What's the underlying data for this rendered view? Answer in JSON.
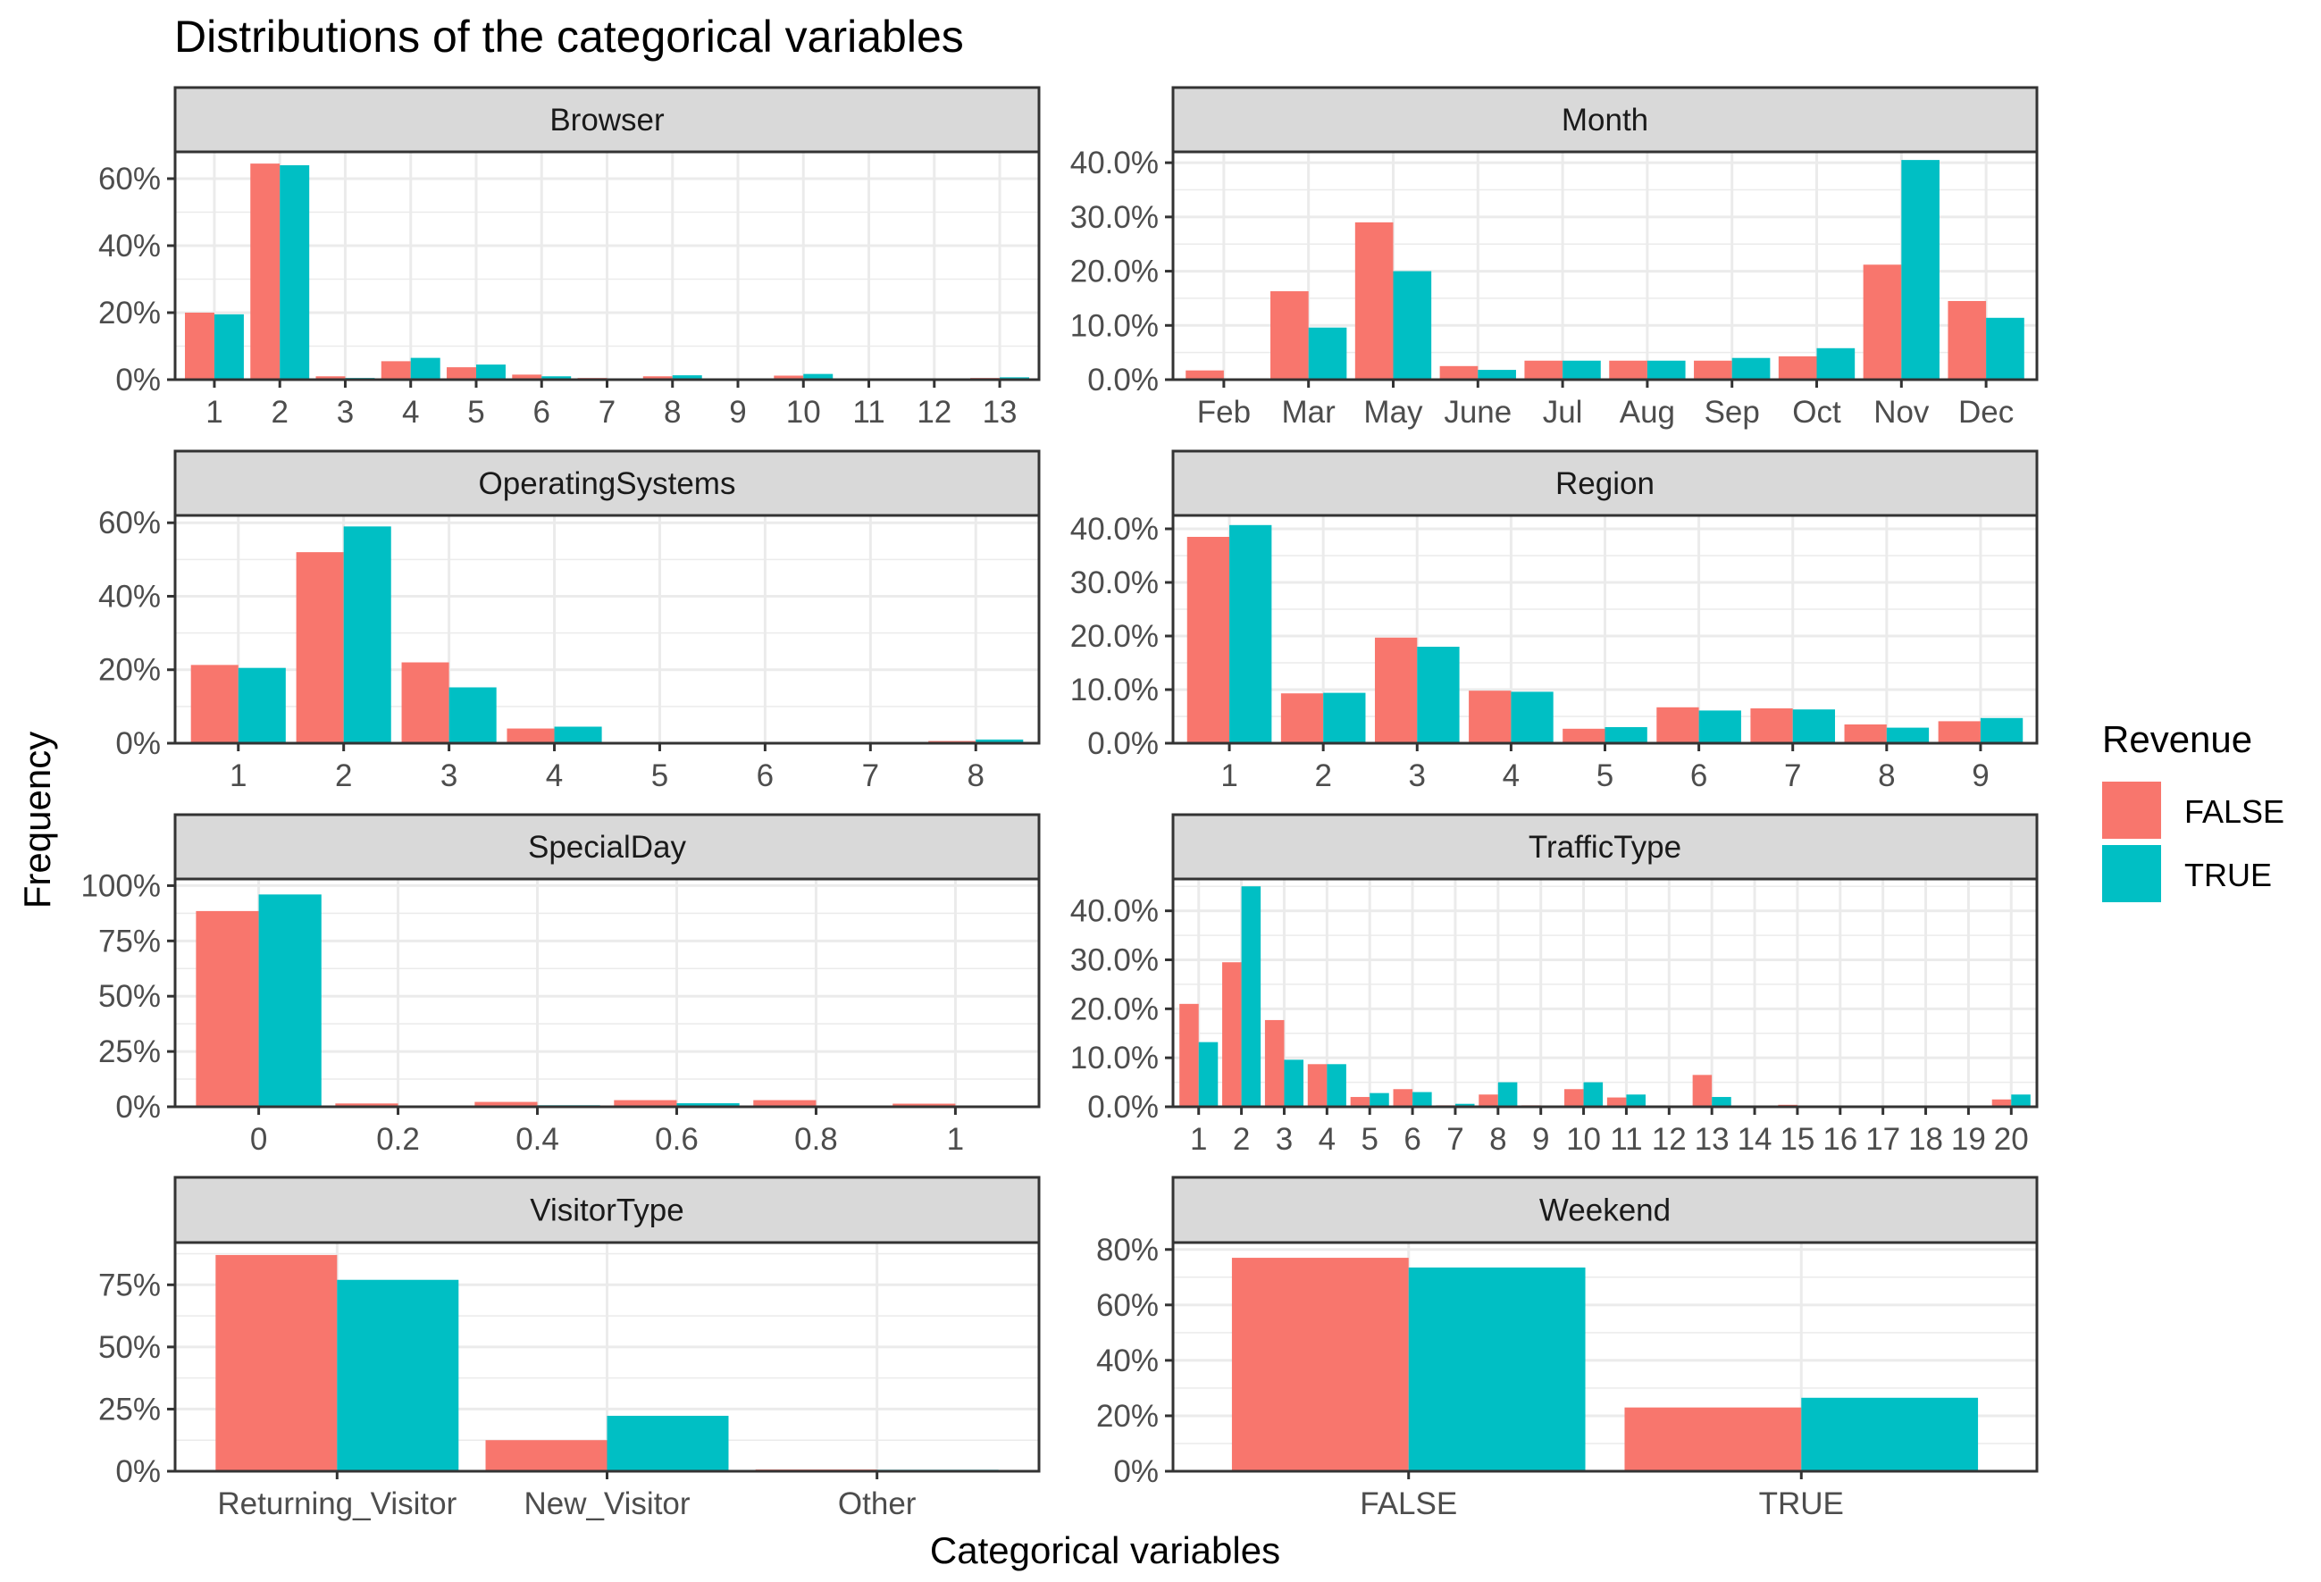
{
  "chart_data": {
    "type": "bar",
    "title": "Distributions of the categorical variables",
    "xlabel": "Categorical variables",
    "ylabel": "Frequency",
    "legend": {
      "title": "Revenue",
      "placement": "right",
      "entries": [
        {
          "name": "FALSE",
          "color": "#F8766D"
        },
        {
          "name": "TRUE",
          "color": "#00BFC4"
        }
      ]
    },
    "grid": true,
    "panels": [
      {
        "strip": "Browser",
        "categories": [
          "1",
          "2",
          "3",
          "4",
          "5",
          "6",
          "7",
          "8",
          "9",
          "10",
          "11",
          "12",
          "13"
        ],
        "yticks": [
          "0%",
          "20%",
          "40%",
          "60%"
        ],
        "ylim": [
          0,
          0.68
        ],
        "series": [
          {
            "name": "FALSE",
            "values": [
              0.2,
              0.645,
              0.01,
              0.055,
              0.037,
              0.015,
              0.005,
              0.01,
              0.001,
              0.012,
              0.001,
              0.001,
              0.005
            ]
          },
          {
            "name": "TRUE",
            "values": [
              0.195,
              0.64,
              0.005,
              0.065,
              0.045,
              0.01,
              0.003,
              0.013,
              0.0,
              0.017,
              0.0,
              0.001,
              0.007
            ]
          }
        ]
      },
      {
        "strip": "Month",
        "categories": [
          "Feb",
          "Mar",
          "May",
          "June",
          "Jul",
          "Aug",
          "Sep",
          "Oct",
          "Nov",
          "Dec"
        ],
        "yticks": [
          "0.0%",
          "10.0%",
          "20.0%",
          "30.0%",
          "40.0%"
        ],
        "ylim": [
          0,
          0.42
        ],
        "series": [
          {
            "name": "FALSE",
            "values": [
              0.017,
              0.163,
              0.29,
              0.025,
              0.035,
              0.035,
              0.035,
              0.043,
              0.212,
              0.145
            ]
          },
          {
            "name": "TRUE",
            "values": [
              0.002,
              0.096,
              0.2,
              0.018,
              0.035,
              0.035,
              0.04,
              0.058,
              0.405,
              0.114
            ]
          }
        ]
      },
      {
        "strip": "OperatingSystems",
        "categories": [
          "1",
          "2",
          "3",
          "4",
          "5",
          "6",
          "7",
          "8"
        ],
        "yticks": [
          "0%",
          "20%",
          "40%",
          "60%"
        ],
        "ylim": [
          0,
          0.62
        ],
        "series": [
          {
            "name": "FALSE",
            "values": [
              0.213,
              0.52,
              0.22,
              0.04,
              0.001,
              0.002,
              0.0,
              0.006
            ]
          },
          {
            "name": "TRUE",
            "values": [
              0.205,
              0.59,
              0.152,
              0.045,
              0.001,
              0.001,
              0.001,
              0.01
            ]
          }
        ]
      },
      {
        "strip": "Region",
        "categories": [
          "1",
          "2",
          "3",
          "4",
          "5",
          "6",
          "7",
          "8",
          "9"
        ],
        "yticks": [
          "0.0%",
          "10.0%",
          "20.0%",
          "30.0%",
          "40.0%"
        ],
        "ylim": [
          0,
          0.425
        ],
        "series": [
          {
            "name": "FALSE",
            "values": [
              0.385,
              0.093,
              0.197,
              0.098,
              0.027,
              0.067,
              0.065,
              0.035,
              0.041
            ]
          },
          {
            "name": "TRUE",
            "values": [
              0.407,
              0.094,
              0.18,
              0.096,
              0.03,
              0.061,
              0.063,
              0.029,
              0.047
            ]
          }
        ]
      },
      {
        "strip": "SpecialDay",
        "categories": [
          "0",
          "0.2",
          "0.4",
          "0.6",
          "0.8",
          "1"
        ],
        "yticks": [
          "0%",
          "25%",
          "50%",
          "75%",
          "100%"
        ],
        "ylim": [
          0,
          1.03
        ],
        "series": [
          {
            "name": "FALSE",
            "values": [
              0.885,
              0.015,
              0.022,
              0.03,
              0.03,
              0.014
            ]
          },
          {
            "name": "TRUE",
            "values": [
              0.96,
              0.006,
              0.007,
              0.016,
              0.006,
              0.006
            ]
          }
        ]
      },
      {
        "strip": "TrafficType",
        "categories": [
          "1",
          "2",
          "3",
          "4",
          "5",
          "6",
          "7",
          "8",
          "9",
          "10",
          "11",
          "12",
          "13",
          "14",
          "15",
          "16",
          "17",
          "18",
          "19",
          "20"
        ],
        "yticks": [
          "0.0%",
          "10.0%",
          "20.0%",
          "30.0%",
          "40.0%"
        ],
        "ylim": [
          0,
          0.465
        ],
        "series": [
          {
            "name": "FALSE",
            "values": [
              0.21,
              0.295,
              0.177,
              0.087,
              0.02,
              0.036,
              0.003,
              0.025,
              0.003,
              0.036,
              0.019,
              0.0,
              0.065,
              0.0,
              0.004,
              0.0,
              0.0,
              0.0,
              0.0,
              0.015
            ]
          },
          {
            "name": "TRUE",
            "values": [
              0.132,
              0.45,
              0.096,
              0.087,
              0.028,
              0.03,
              0.006,
              0.05,
              0.0,
              0.05,
              0.025,
              0.0,
              0.02,
              0.0,
              0.0,
              0.0,
              0.0,
              0.0,
              0.0,
              0.025
            ]
          }
        ]
      },
      {
        "strip": "VisitorType",
        "categories": [
          "Returning_Visitor",
          "New_Visitor",
          "Other"
        ],
        "yticks": [
          "0%",
          "25%",
          "50%",
          "75%"
        ],
        "ylim": [
          0,
          0.92
        ],
        "series": [
          {
            "name": "FALSE",
            "values": [
              0.87,
              0.125,
              0.007
            ]
          },
          {
            "name": "TRUE",
            "values": [
              0.77,
              0.223,
              0.006
            ]
          }
        ]
      },
      {
        "strip": "Weekend",
        "categories": [
          "FALSE",
          "TRUE"
        ],
        "yticks": [
          "0%",
          "20%",
          "40%",
          "60%",
          "80%"
        ],
        "ylim": [
          0,
          0.825
        ],
        "series": [
          {
            "name": "FALSE",
            "values": [
              0.77,
              0.23
            ]
          },
          {
            "name": "TRUE",
            "values": [
              0.735,
              0.265
            ]
          }
        ]
      }
    ]
  }
}
